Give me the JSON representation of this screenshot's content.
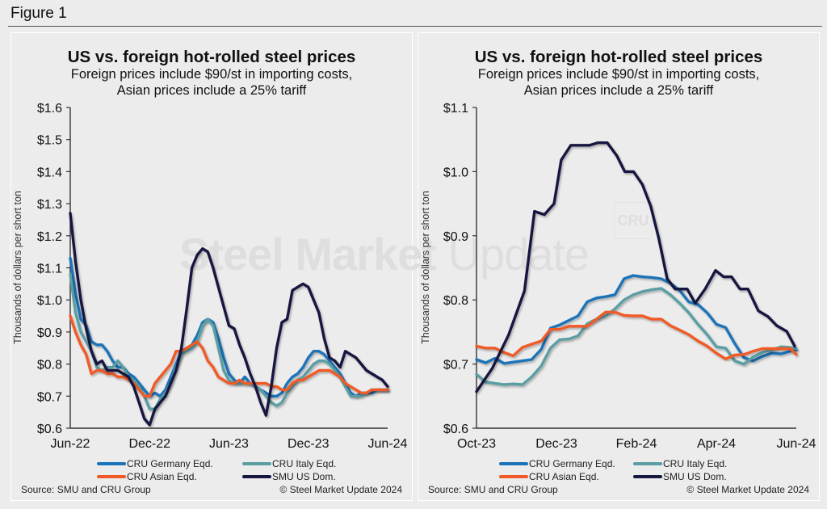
{
  "figure": {
    "title": "Figure 1",
    "watermark_bold": "Steel Market",
    "watermark_light": "Update",
    "watermark_logo": "CRU"
  },
  "colors": {
    "germany": "#1a73b8",
    "italy": "#5a9ea3",
    "asian": "#f05a28",
    "smu": "#15193f"
  },
  "legend": [
    {
      "key": "germany",
      "label": "CRU Germany Eqd."
    },
    {
      "key": "italy",
      "label": "CRU Italy Eqd."
    },
    {
      "key": "asian",
      "label": "CRU Asian Eqd."
    },
    {
      "key": "smu",
      "label": "SMU US Dom."
    }
  ],
  "chart_data": [
    {
      "type": "line",
      "title": "US vs. foreign hot-rolled steel prices",
      "subtitle_line1": "Foreign prices include $90/st in importing costs,",
      "subtitle_line2": "Asian prices include a 25% tariff",
      "ylabel": "Thousands of dollars per short ton",
      "xlabel": "",
      "ylim": [
        0.6,
        1.6
      ],
      "yticks": [
        0.6,
        0.7,
        0.8,
        0.9,
        1.0,
        1.1,
        1.2,
        1.3,
        1.4,
        1.5,
        1.6
      ],
      "ytick_labels": [
        "$0.6",
        "$0.7",
        "$0.8",
        "$0.9",
        "$1.0",
        "$1.1",
        "$1.2",
        "$1.3",
        "$1.4",
        "$1.5",
        "$1.6"
      ],
      "xlim_months": [
        0,
        24
      ],
      "xticks": [
        0,
        6,
        12,
        18,
        24
      ],
      "xtick_labels": [
        "Jun-22",
        "Dec-22",
        "Jun-23",
        "Dec-23",
        "Jun-24"
      ],
      "x_unit": "months since Jun-22",
      "grid": false,
      "legend_position": "bottom",
      "source": "Source: SMU and CRU Group",
      "copyright": "© Steel Market Update 2024",
      "series": [
        {
          "name": "CRU Germany Eqd.",
          "key": "germany",
          "x": [
            0,
            0.4,
            0.8,
            1.2,
            1.6,
            2.0,
            2.4,
            2.8,
            3.2,
            3.6,
            4.0,
            4.4,
            4.8,
            5.2,
            5.6,
            6.0,
            6.4,
            6.8,
            7.2,
            7.6,
            8.0,
            8.4,
            8.8,
            9.2,
            9.6,
            10.0,
            10.4,
            10.8,
            11.2,
            11.6,
            12.0,
            12.4,
            12.8,
            13.2,
            13.6,
            14.0,
            14.4,
            14.8,
            15.2,
            15.6,
            16.0,
            16.4,
            16.8,
            17.2,
            17.6,
            18.0,
            18.4,
            18.8,
            19.2,
            19.6,
            20.0,
            20.4,
            20.8,
            21.2,
            21.6,
            22.0,
            22.4,
            22.8,
            23.2,
            23.6,
            24.0
          ],
          "values": [
            1.13,
            1.02,
            0.94,
            0.92,
            0.87,
            0.86,
            0.86,
            0.84,
            0.81,
            0.79,
            0.79,
            0.77,
            0.76,
            0.74,
            0.72,
            0.7,
            0.71,
            0.7,
            0.72,
            0.76,
            0.8,
            0.84,
            0.85,
            0.86,
            0.89,
            0.93,
            0.94,
            0.93,
            0.88,
            0.82,
            0.77,
            0.75,
            0.74,
            0.76,
            0.74,
            0.73,
            0.72,
            0.71,
            0.7,
            0.7,
            0.71,
            0.74,
            0.76,
            0.77,
            0.79,
            0.82,
            0.84,
            0.84,
            0.83,
            0.81,
            0.79,
            0.77,
            0.74,
            0.71,
            0.7,
            0.71,
            0.71,
            0.71,
            0.72,
            0.72,
            0.72
          ]
        },
        {
          "name": "CRU Italy Eqd.",
          "key": "italy",
          "x": [
            0,
            0.4,
            0.8,
            1.2,
            1.6,
            2.0,
            2.4,
            2.8,
            3.2,
            3.6,
            4.0,
            4.4,
            4.8,
            5.2,
            5.6,
            6.0,
            6.4,
            6.8,
            7.2,
            7.6,
            8.0,
            8.4,
            8.8,
            9.2,
            9.6,
            10.0,
            10.4,
            10.8,
            11.2,
            11.6,
            12.0,
            12.4,
            12.8,
            13.2,
            13.6,
            14.0,
            14.4,
            14.8,
            15.2,
            15.6,
            16.0,
            16.4,
            16.8,
            17.2,
            17.6,
            18.0,
            18.4,
            18.8,
            19.2,
            19.6,
            20.0,
            20.4,
            20.8,
            21.2,
            21.6,
            22.0,
            22.4,
            22.8,
            23.2,
            23.6,
            24.0
          ],
          "values": [
            1.08,
            0.96,
            0.9,
            0.87,
            0.84,
            0.79,
            0.78,
            0.79,
            0.79,
            0.81,
            0.79,
            0.76,
            0.75,
            0.73,
            0.7,
            0.66,
            0.66,
            0.69,
            0.71,
            0.74,
            0.79,
            0.83,
            0.84,
            0.85,
            0.87,
            0.92,
            0.94,
            0.92,
            0.85,
            0.78,
            0.75,
            0.74,
            0.74,
            0.74,
            0.74,
            0.73,
            0.72,
            0.7,
            0.68,
            0.67,
            0.68,
            0.71,
            0.73,
            0.75,
            0.76,
            0.78,
            0.8,
            0.81,
            0.81,
            0.8,
            0.78,
            0.76,
            0.73,
            0.7,
            0.7,
            0.7,
            0.71,
            0.72,
            0.72,
            0.72,
            0.72
          ]
        },
        {
          "name": "CRU Asian Eqd.",
          "key": "asian",
          "x": [
            0,
            0.4,
            0.8,
            1.2,
            1.6,
            2.0,
            2.4,
            2.8,
            3.2,
            3.6,
            4.0,
            4.4,
            4.8,
            5.2,
            5.6,
            6.0,
            6.4,
            6.8,
            7.2,
            7.6,
            8.0,
            8.4,
            8.8,
            9.2,
            9.6,
            10.0,
            10.4,
            10.8,
            11.2,
            11.6,
            12.0,
            12.4,
            12.8,
            13.2,
            13.6,
            14.0,
            14.4,
            14.8,
            15.2,
            15.6,
            16.0,
            16.4,
            16.8,
            17.2,
            17.6,
            18.0,
            18.4,
            18.8,
            19.2,
            19.6,
            20.0,
            20.4,
            20.8,
            21.2,
            21.6,
            22.0,
            22.4,
            22.8,
            23.2,
            23.6,
            24.0
          ],
          "values": [
            0.95,
            0.9,
            0.86,
            0.83,
            0.77,
            0.78,
            0.78,
            0.77,
            0.77,
            0.76,
            0.76,
            0.75,
            0.74,
            0.72,
            0.7,
            0.7,
            0.74,
            0.76,
            0.78,
            0.8,
            0.84,
            0.84,
            0.85,
            0.86,
            0.87,
            0.85,
            0.81,
            0.79,
            0.76,
            0.75,
            0.74,
            0.74,
            0.75,
            0.74,
            0.74,
            0.74,
            0.74,
            0.74,
            0.73,
            0.73,
            0.72,
            0.72,
            0.74,
            0.75,
            0.75,
            0.76,
            0.77,
            0.78,
            0.78,
            0.78,
            0.77,
            0.76,
            0.74,
            0.73,
            0.72,
            0.71,
            0.71,
            0.72,
            0.72,
            0.72,
            0.72
          ]
        },
        {
          "name": "SMU US Dom.",
          "key": "smu",
          "x": [
            0,
            0.4,
            0.8,
            1.2,
            1.6,
            2.0,
            2.4,
            2.8,
            3.2,
            3.6,
            4.0,
            4.4,
            4.8,
            5.2,
            5.6,
            6.0,
            6.4,
            6.8,
            7.2,
            7.6,
            8.0,
            8.4,
            8.8,
            9.2,
            9.6,
            10.0,
            10.4,
            10.8,
            11.2,
            11.6,
            12.0,
            12.4,
            12.8,
            13.2,
            13.6,
            14.0,
            14.4,
            14.8,
            15.2,
            15.6,
            16.0,
            16.4,
            16.8,
            17.2,
            17.6,
            18.0,
            18.4,
            18.8,
            19.2,
            19.6,
            20.0,
            20.4,
            20.8,
            21.2,
            21.6,
            22.0,
            22.4,
            22.8,
            23.2,
            23.6,
            24.0
          ],
          "values": [
            1.27,
            1.12,
            1.0,
            0.91,
            0.84,
            0.8,
            0.81,
            0.78,
            0.78,
            0.78,
            0.77,
            0.76,
            0.73,
            0.68,
            0.63,
            0.61,
            0.66,
            0.68,
            0.7,
            0.74,
            0.78,
            0.85,
            0.97,
            1.1,
            1.14,
            1.16,
            1.15,
            1.1,
            1.04,
            0.98,
            0.92,
            0.91,
            0.86,
            0.82,
            0.77,
            0.73,
            0.68,
            0.64,
            0.73,
            0.85,
            0.93,
            0.94,
            1.03,
            1.04,
            1.05,
            1.04,
            1.0,
            0.96,
            0.88,
            0.82,
            0.81,
            0.79,
            0.84,
            0.83,
            0.82,
            0.8,
            0.78,
            0.77,
            0.76,
            0.75,
            0.73
          ]
        }
      ]
    },
    {
      "type": "line",
      "title": "US vs. foreign hot-rolled steel prices",
      "subtitle_line1": "Foreign prices include $90/st in importing costs,",
      "subtitle_line2": "Asian prices include a 25% tariff",
      "ylabel": "Thousands of dollars per short ton",
      "xlabel": "",
      "ylim": [
        0.6,
        1.1
      ],
      "yticks": [
        0.6,
        0.7,
        0.8,
        0.9,
        1.0,
        1.1
      ],
      "ytick_labels": [
        "$0.6",
        "$0.7",
        "$0.8",
        "$0.9",
        "$1.0",
        "$1.1"
      ],
      "xlim_months": [
        0,
        8
      ],
      "xticks": [
        0,
        2,
        4,
        6,
        8
      ],
      "xtick_labels": [
        "Oct-23",
        "Dec-23",
        "Feb-24",
        "Apr-24",
        "Jun-24"
      ],
      "x_unit": "months since Oct-23",
      "grid": false,
      "legend_position": "bottom",
      "source": "Source: SMU and CRU Group",
      "copyright": "© Steel Market Update 2024",
      "series": [
        {
          "name": "CRU Germany Eqd.",
          "key": "germany",
          "x": [
            0,
            0.23,
            0.46,
            0.69,
            0.92,
            1.15,
            1.38,
            1.62,
            1.85,
            2.08,
            2.31,
            2.54,
            2.77,
            3.0,
            3.23,
            3.46,
            3.69,
            3.92,
            4.15,
            4.38,
            4.62,
            4.85,
            5.08,
            5.31,
            5.54,
            5.77,
            6.0,
            6.23,
            6.46,
            6.69,
            6.92,
            7.15,
            7.38,
            7.62,
            7.85,
            8.0
          ],
          "values": [
            0.707,
            0.702,
            0.709,
            0.701,
            0.703,
            0.705,
            0.707,
            0.723,
            0.756,
            0.761,
            0.768,
            0.775,
            0.797,
            0.803,
            0.805,
            0.808,
            0.833,
            0.838,
            0.836,
            0.835,
            0.833,
            0.826,
            0.815,
            0.797,
            0.793,
            0.78,
            0.762,
            0.757,
            0.732,
            0.71,
            0.705,
            0.712,
            0.717,
            0.716,
            0.72,
            0.722
          ]
        },
        {
          "name": "CRU Italy Eqd.",
          "key": "italy",
          "x": [
            0,
            0.23,
            0.46,
            0.69,
            0.92,
            1.15,
            1.38,
            1.62,
            1.85,
            2.08,
            2.31,
            2.54,
            2.77,
            3.0,
            3.23,
            3.46,
            3.69,
            3.92,
            4.15,
            4.38,
            4.62,
            4.85,
            5.08,
            5.31,
            5.54,
            5.77,
            6.0,
            6.23,
            6.46,
            6.69,
            6.92,
            7.15,
            7.38,
            7.62,
            7.85,
            8.0
          ],
          "values": [
            0.684,
            0.672,
            0.67,
            0.668,
            0.669,
            0.668,
            0.68,
            0.697,
            0.725,
            0.738,
            0.739,
            0.744,
            0.763,
            0.77,
            0.775,
            0.786,
            0.8,
            0.808,
            0.813,
            0.816,
            0.818,
            0.808,
            0.795,
            0.78,
            0.762,
            0.746,
            0.727,
            0.725,
            0.705,
            0.7,
            0.711,
            0.718,
            0.722,
            0.727,
            0.726,
            0.724
          ]
        },
        {
          "name": "CRU Asian Eqd.",
          "key": "asian",
          "x": [
            0,
            0.23,
            0.46,
            0.69,
            0.92,
            1.15,
            1.38,
            1.62,
            1.85,
            2.08,
            2.31,
            2.54,
            2.77,
            3.0,
            3.23,
            3.46,
            3.69,
            3.92,
            4.15,
            4.38,
            4.62,
            4.85,
            5.08,
            5.31,
            5.54,
            5.77,
            6.0,
            6.23,
            6.46,
            6.69,
            6.92,
            7.15,
            7.38,
            7.62,
            7.85,
            8.0
          ],
          "values": [
            0.728,
            0.725,
            0.725,
            0.718,
            0.713,
            0.726,
            0.731,
            0.736,
            0.754,
            0.754,
            0.759,
            0.759,
            0.759,
            0.77,
            0.781,
            0.781,
            0.776,
            0.775,
            0.775,
            0.77,
            0.77,
            0.76,
            0.753,
            0.746,
            0.736,
            0.728,
            0.717,
            0.708,
            0.714,
            0.715,
            0.72,
            0.724,
            0.724,
            0.724,
            0.724,
            0.715
          ]
        },
        {
          "name": "SMU US Dom.",
          "key": "smu",
          "x": [
            0,
            0.4,
            0.8,
            1.2,
            1.45,
            1.7,
            1.94,
            2.12,
            2.36,
            2.83,
            3.03,
            3.27,
            3.51,
            3.71,
            3.93,
            4.15,
            4.36,
            4.56,
            4.77,
            4.97,
            5.27,
            5.47,
            5.72,
            5.98,
            6.18,
            6.38,
            6.59,
            6.79,
            7.05,
            7.29,
            7.51,
            7.76,
            7.96
          ],
          "values": [
            0.657,
            0.694,
            0.745,
            0.814,
            0.938,
            0.933,
            0.95,
            1.018,
            1.041,
            1.041,
            1.045,
            1.045,
            1.025,
            1.0,
            1.0,
            0.98,
            0.946,
            0.896,
            0.833,
            0.817,
            0.817,
            0.795,
            0.817,
            0.846,
            0.836,
            0.836,
            0.817,
            0.817,
            0.783,
            0.774,
            0.76,
            0.751,
            0.728
          ]
        }
      ]
    }
  ]
}
